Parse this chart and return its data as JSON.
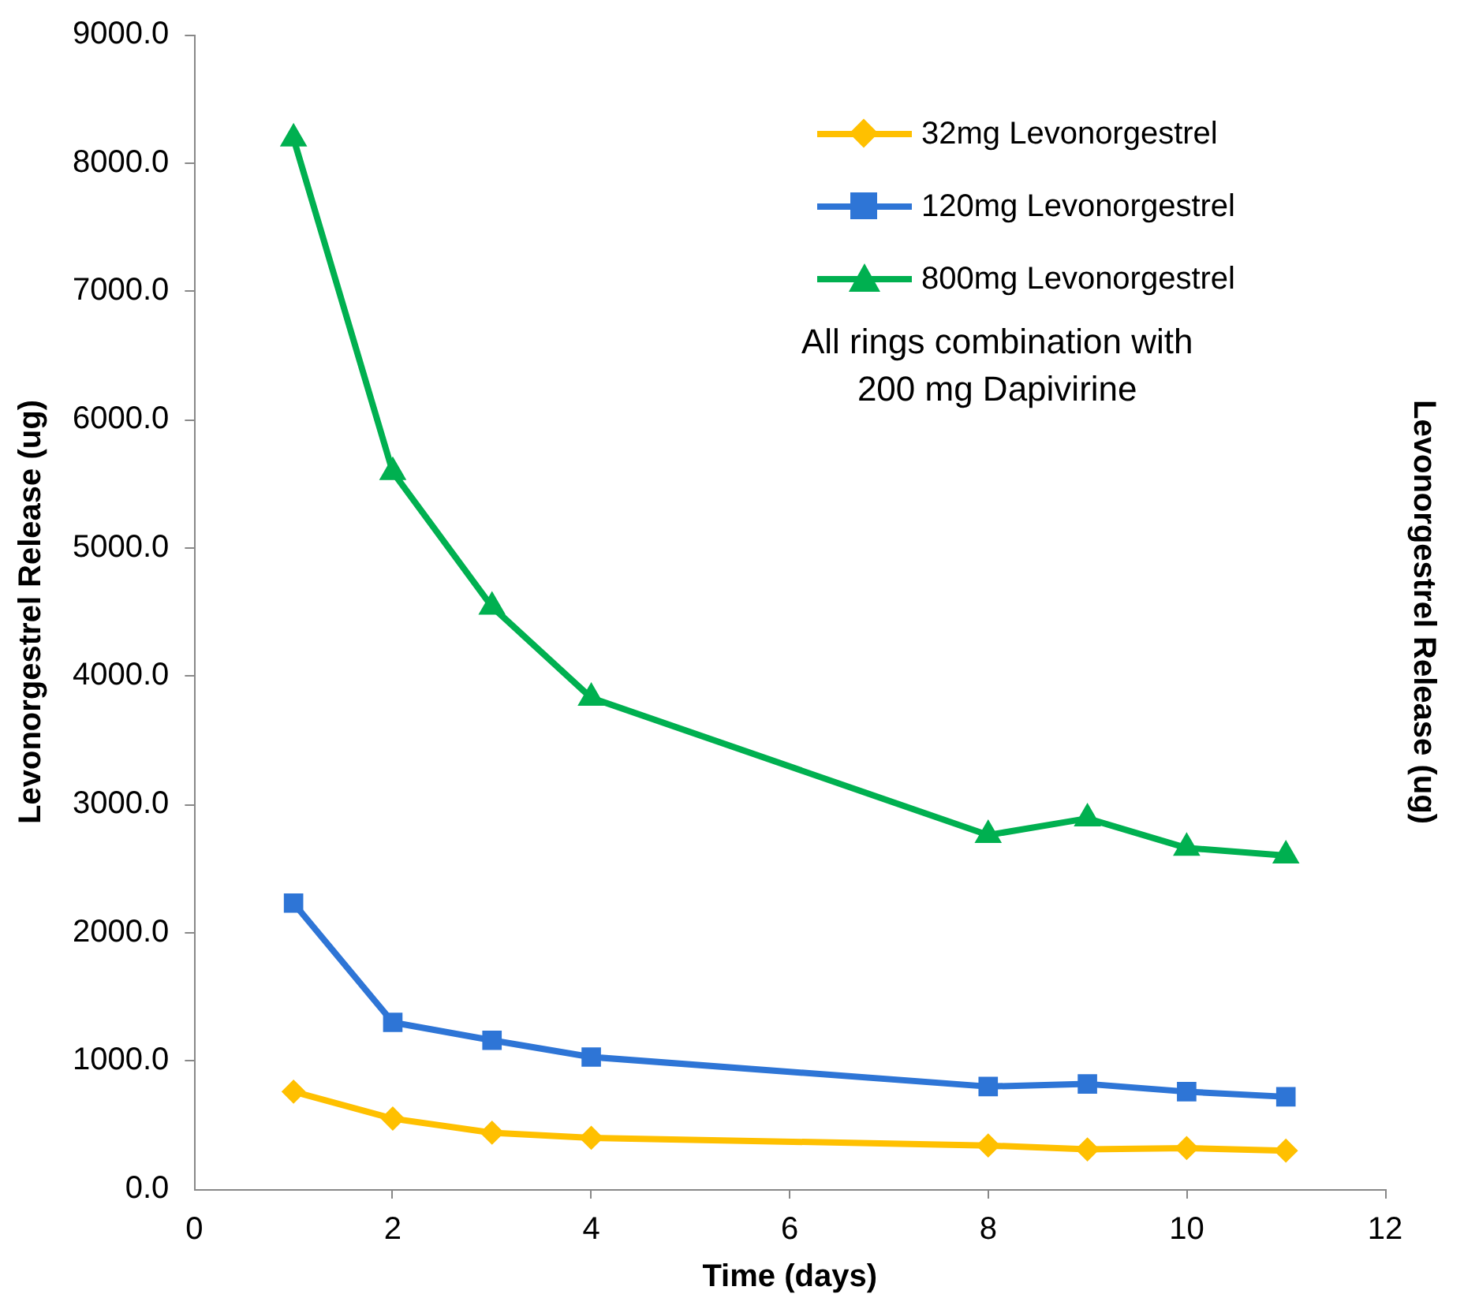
{
  "chart_data": {
    "type": "line",
    "xlabel": "Time (days)",
    "ylabel": "Levonorgestrel Release (ug)",
    "y2label": "Levonorgestrel Release (ug)",
    "x": [
      1,
      2,
      3,
      4,
      8,
      9,
      10,
      11
    ],
    "series": [
      {
        "name": "32mg Levonorgestrel",
        "color": "#ffc000",
        "marker": "diamond",
        "values": [
          760,
          550,
          440,
          400,
          340,
          310,
          320,
          300
        ]
      },
      {
        "name": "120mg Levonorgestrel",
        "color": "#2e75d6",
        "marker": "square",
        "values": [
          2230,
          1300,
          1160,
          1030,
          800,
          820,
          760,
          720
        ]
      },
      {
        "name": "800mg Levonorgestrel",
        "color": "#00b050",
        "marker": "triangle",
        "values": [
          8190,
          5590,
          4540,
          3830,
          2760,
          2890,
          2660,
          2600
        ]
      }
    ],
    "xlim": [
      0,
      12
    ],
    "xticks": [
      0,
      2,
      4,
      6,
      8,
      10,
      12
    ],
    "ylim": [
      0,
      9000
    ],
    "yticks": [
      {
        "value": 0,
        "label": "0.0"
      },
      {
        "value": 1000,
        "label": "1000.0"
      },
      {
        "value": 2000,
        "label": "2000.0"
      },
      {
        "value": 3000,
        "label": "3000.0"
      },
      {
        "value": 4000,
        "label": "4000.0"
      },
      {
        "value": 5000,
        "label": "5000.0"
      },
      {
        "value": 6000,
        "label": "6000.0"
      },
      {
        "value": 7000,
        "label": "7000.0"
      },
      {
        "value": 8000,
        "label": "8000.0"
      },
      {
        "value": 9000,
        "label": "9000.0"
      }
    ],
    "grid": false,
    "legend": "top right",
    "annotations": [
      "All rings combination with\n200 mg Dapivirine"
    ]
  }
}
